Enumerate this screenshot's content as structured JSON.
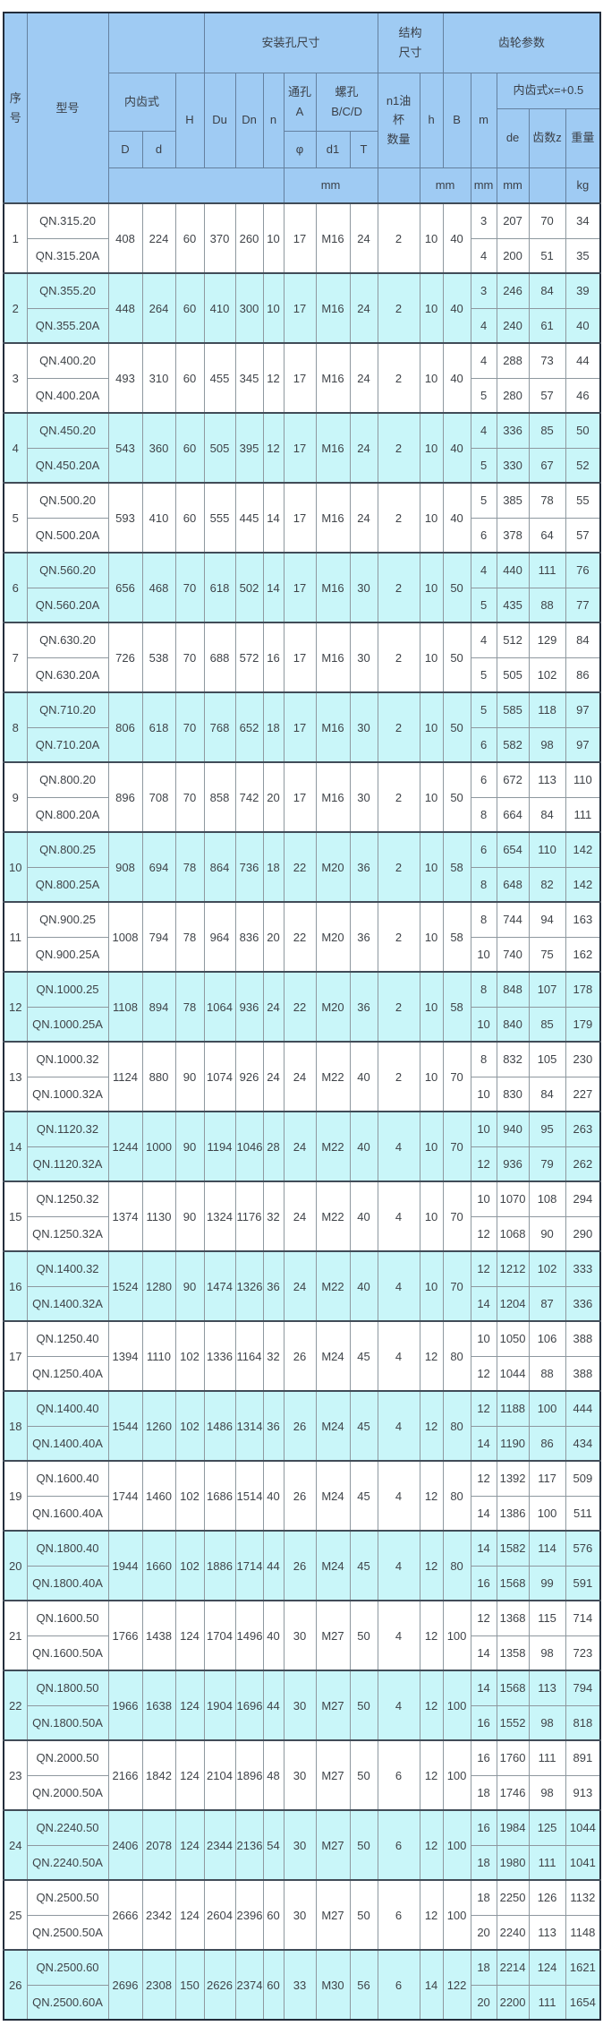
{
  "colors": {
    "header_bg": "#9fcbf3",
    "band_cyan": "#c9f6f9",
    "band_white": "#ffffff",
    "body_grid_line": "#8e989f",
    "header_grid_line": "#64809f",
    "outer_border": "#232d3b",
    "text": "#3f4348"
  },
  "table": {
    "header": {
      "serial": "序\n号",
      "model": "型号",
      "install_dims": "安装孔尺寸",
      "structure_dims": "结构\n尺寸",
      "gear_params": "齿轮参数",
      "internal_gear": "内齿式",
      "H": "H",
      "Du": "Du",
      "Dn": "Dn",
      "n": "n",
      "through_hole": "通孔\nA",
      "screw_hole": "螺孔\nB/C/D",
      "oil_cup": "n1油\n杯\n数量",
      "h": "h",
      "B": "B",
      "m": "m",
      "internal_gear_x": "内齿式x=+0.5",
      "D": "D",
      "d": "d",
      "phi": "φ",
      "d1": "d1",
      "T": "T",
      "de": "de",
      "teeth": "齿数z",
      "weight": "重量"
    },
    "units": {
      "mm": "mm",
      "kg": "kg"
    },
    "shared_columns": [
      "D",
      "d",
      "H",
      "Du",
      "Dn",
      "n",
      "phi",
      "d1",
      "T",
      "n1",
      "h",
      "B"
    ],
    "variant_columns": [
      "m",
      "de",
      "teeth-z",
      "weight"
    ],
    "rows": [
      {
        "no": "1",
        "models": [
          "QN.315.20",
          "QN.315.20A"
        ],
        "shared": [
          "408",
          "224",
          "60",
          "370",
          "260",
          "10",
          "17",
          "M16",
          "24",
          "2",
          "10",
          "40"
        ],
        "variants": [
          [
            "3",
            "207",
            "70",
            "34"
          ],
          [
            "4",
            "200",
            "51",
            "35"
          ]
        ]
      },
      {
        "no": "2",
        "models": [
          "QN.355.20",
          "QN.355.20A"
        ],
        "shared": [
          "448",
          "264",
          "60",
          "410",
          "300",
          "10",
          "17",
          "M16",
          "24",
          "2",
          "10",
          "40"
        ],
        "variants": [
          [
            "3",
            "246",
            "84",
            "39"
          ],
          [
            "4",
            "240",
            "61",
            "40"
          ]
        ]
      },
      {
        "no": "3",
        "models": [
          "QN.400.20",
          "QN.400.20A"
        ],
        "shared": [
          "493",
          "310",
          "60",
          "455",
          "345",
          "12",
          "17",
          "M16",
          "24",
          "2",
          "10",
          "40"
        ],
        "variants": [
          [
            "4",
            "288",
            "73",
            "44"
          ],
          [
            "5",
            "280",
            "57",
            "46"
          ]
        ]
      },
      {
        "no": "4",
        "models": [
          "QN.450.20",
          "QN.450.20A"
        ],
        "shared": [
          "543",
          "360",
          "60",
          "505",
          "395",
          "12",
          "17",
          "M16",
          "24",
          "2",
          "10",
          "40"
        ],
        "variants": [
          [
            "4",
            "336",
            "85",
            "50"
          ],
          [
            "5",
            "330",
            "67",
            "52"
          ]
        ]
      },
      {
        "no": "5",
        "models": [
          "QN.500.20",
          "QN.500.20A"
        ],
        "shared": [
          "593",
          "410",
          "60",
          "555",
          "445",
          "14",
          "17",
          "M16",
          "24",
          "2",
          "10",
          "40"
        ],
        "variants": [
          [
            "5",
            "385",
            "78",
            "55"
          ],
          [
            "6",
            "378",
            "64",
            "57"
          ]
        ]
      },
      {
        "no": "6",
        "models": [
          "QN.560.20",
          "QN.560.20A"
        ],
        "shared": [
          "656",
          "468",
          "70",
          "618",
          "502",
          "14",
          "17",
          "M16",
          "30",
          "2",
          "10",
          "50"
        ],
        "variants": [
          [
            "4",
            "440",
            "111",
            "76"
          ],
          [
            "5",
            "435",
            "88",
            "77"
          ]
        ]
      },
      {
        "no": "7",
        "models": [
          "QN.630.20",
          "QN.630.20A"
        ],
        "shared": [
          "726",
          "538",
          "70",
          "688",
          "572",
          "16",
          "17",
          "M16",
          "30",
          "2",
          "10",
          "50"
        ],
        "variants": [
          [
            "4",
            "512",
            "129",
            "84"
          ],
          [
            "5",
            "505",
            "102",
            "86"
          ]
        ]
      },
      {
        "no": "8",
        "models": [
          "QN.710.20",
          "QN.710.20A"
        ],
        "shared": [
          "806",
          "618",
          "70",
          "768",
          "652",
          "18",
          "17",
          "M16",
          "30",
          "2",
          "10",
          "50"
        ],
        "variants": [
          [
            "5",
            "585",
            "118",
            "97"
          ],
          [
            "6",
            "582",
            "98",
            "97"
          ]
        ]
      },
      {
        "no": "9",
        "models": [
          "QN.800.20",
          "QN.800.20A"
        ],
        "shared": [
          "896",
          "708",
          "70",
          "858",
          "742",
          "20",
          "17",
          "M16",
          "30",
          "2",
          "10",
          "50"
        ],
        "variants": [
          [
            "6",
            "672",
            "113",
            "110"
          ],
          [
            "8",
            "664",
            "84",
            "111"
          ]
        ]
      },
      {
        "no": "10",
        "models": [
          "QN.800.25",
          "QN.800.25A"
        ],
        "shared": [
          "908",
          "694",
          "78",
          "864",
          "736",
          "18",
          "22",
          "M20",
          "36",
          "2",
          "10",
          "58"
        ],
        "variants": [
          [
            "6",
            "654",
            "110",
            "142"
          ],
          [
            "8",
            "648",
            "82",
            "142"
          ]
        ]
      },
      {
        "no": "11",
        "models": [
          "QN.900.25",
          "QN.900.25A"
        ],
        "shared": [
          "1008",
          "794",
          "78",
          "964",
          "836",
          "20",
          "22",
          "M20",
          "36",
          "2",
          "10",
          "58"
        ],
        "variants": [
          [
            "8",
            "744",
            "94",
            "163"
          ],
          [
            "10",
            "740",
            "75",
            "162"
          ]
        ]
      },
      {
        "no": "12",
        "models": [
          "QN.1000.25",
          "QN.1000.25A"
        ],
        "shared": [
          "1108",
          "894",
          "78",
          "1064",
          "936",
          "24",
          "22",
          "M20",
          "36",
          "2",
          "10",
          "58"
        ],
        "variants": [
          [
            "8",
            "848",
            "107",
            "178"
          ],
          [
            "10",
            "840",
            "85",
            "179"
          ]
        ]
      },
      {
        "no": "13",
        "models": [
          "QN.1000.32",
          "QN.1000.32A"
        ],
        "shared": [
          "1124",
          "880",
          "90",
          "1074",
          "926",
          "24",
          "24",
          "M22",
          "40",
          "2",
          "10",
          "70"
        ],
        "variants": [
          [
            "8",
            "832",
            "105",
            "230"
          ],
          [
            "10",
            "830",
            "84",
            "227"
          ]
        ]
      },
      {
        "no": "14",
        "models": [
          "QN.1120.32",
          "QN.1120.32A"
        ],
        "shared": [
          "1244",
          "1000",
          "90",
          "1194",
          "1046",
          "28",
          "24",
          "M22",
          "40",
          "4",
          "10",
          "70"
        ],
        "variants": [
          [
            "10",
            "940",
            "95",
            "263"
          ],
          [
            "12",
            "936",
            "79",
            "262"
          ]
        ]
      },
      {
        "no": "15",
        "models": [
          "QN.1250.32",
          "QN.1250.32A"
        ],
        "shared": [
          "1374",
          "1130",
          "90",
          "1324",
          "1176",
          "32",
          "24",
          "M22",
          "40",
          "4",
          "10",
          "70"
        ],
        "variants": [
          [
            "10",
            "1070",
            "108",
            "294"
          ],
          [
            "12",
            "1068",
            "90",
            "290"
          ]
        ]
      },
      {
        "no": "16",
        "models": [
          "QN.1400.32",
          "QN.1400.32A"
        ],
        "shared": [
          "1524",
          "1280",
          "90",
          "1474",
          "1326",
          "36",
          "24",
          "M22",
          "40",
          "4",
          "10",
          "70"
        ],
        "variants": [
          [
            "12",
            "1212",
            "102",
            "333"
          ],
          [
            "14",
            "1204",
            "87",
            "336"
          ]
        ]
      },
      {
        "no": "17",
        "models": [
          "QN.1250.40",
          "QN.1250.40A"
        ],
        "shared": [
          "1394",
          "1110",
          "102",
          "1336",
          "1164",
          "32",
          "26",
          "M24",
          "45",
          "4",
          "12",
          "80"
        ],
        "variants": [
          [
            "10",
            "1050",
            "106",
            "388"
          ],
          [
            "12",
            "1044",
            "88",
            "388"
          ]
        ]
      },
      {
        "no": "18",
        "models": [
          "QN.1400.40",
          "QN.1400.40A"
        ],
        "shared": [
          "1544",
          "1260",
          "102",
          "1486",
          "1314",
          "36",
          "26",
          "M24",
          "45",
          "4",
          "12",
          "80"
        ],
        "variants": [
          [
            "12",
            "1188",
            "100",
            "444"
          ],
          [
            "14",
            "1190",
            "86",
            "434"
          ]
        ]
      },
      {
        "no": "19",
        "models": [
          "QN.1600.40",
          "QN.1600.40A"
        ],
        "shared": [
          "1744",
          "1460",
          "102",
          "1686",
          "1514",
          "40",
          "26",
          "M24",
          "45",
          "4",
          "12",
          "80"
        ],
        "variants": [
          [
            "12",
            "1392",
            "117",
            "509"
          ],
          [
            "14",
            "1386",
            "100",
            "511"
          ]
        ]
      },
      {
        "no": "20",
        "models": [
          "QN.1800.40",
          "QN.1800.40A"
        ],
        "shared": [
          "1944",
          "1660",
          "102",
          "1886",
          "1714",
          "44",
          "26",
          "M24",
          "45",
          "4",
          "12",
          "80"
        ],
        "variants": [
          [
            "14",
            "1582",
            "114",
            "576"
          ],
          [
            "16",
            "1568",
            "99",
            "591"
          ]
        ]
      },
      {
        "no": "21",
        "models": [
          "QN.1600.50",
          "QN.1600.50A"
        ],
        "shared": [
          "1766",
          "1438",
          "124",
          "1704",
          "1496",
          "40",
          "30",
          "M27",
          "50",
          "4",
          "12",
          "100"
        ],
        "variants": [
          [
            "12",
            "1368",
            "115",
            "714"
          ],
          [
            "14",
            "1358",
            "98",
            "723"
          ]
        ]
      },
      {
        "no": "22",
        "models": [
          "QN.1800.50",
          "QN.1800.50A"
        ],
        "shared": [
          "1966",
          "1638",
          "124",
          "1904",
          "1696",
          "44",
          "30",
          "M27",
          "50",
          "4",
          "12",
          "100"
        ],
        "variants": [
          [
            "14",
            "1568",
            "113",
            "794"
          ],
          [
            "16",
            "1552",
            "98",
            "818"
          ]
        ]
      },
      {
        "no": "23",
        "models": [
          "QN.2000.50",
          "QN.2000.50A"
        ],
        "shared": [
          "2166",
          "1842",
          "124",
          "2104",
          "1896",
          "48",
          "30",
          "M27",
          "50",
          "6",
          "12",
          "100"
        ],
        "variants": [
          [
            "16",
            "1760",
            "111",
            "891"
          ],
          [
            "18",
            "1746",
            "98",
            "913"
          ]
        ]
      },
      {
        "no": "24",
        "models": [
          "QN.2240.50",
          "QN.2240.50A"
        ],
        "shared": [
          "2406",
          "2078",
          "124",
          "2344",
          "2136",
          "54",
          "30",
          "M27",
          "50",
          "6",
          "12",
          "100"
        ],
        "variants": [
          [
            "16",
            "1984",
            "125",
            "1044"
          ],
          [
            "18",
            "1980",
            "111",
            "1041"
          ]
        ]
      },
      {
        "no": "25",
        "models": [
          "QN.2500.50",
          "QN.2500.50A"
        ],
        "shared": [
          "2666",
          "2342",
          "124",
          "2604",
          "2396",
          "60",
          "30",
          "M27",
          "50",
          "6",
          "12",
          "100"
        ],
        "variants": [
          [
            "18",
            "2250",
            "126",
            "1132"
          ],
          [
            "20",
            "2240",
            "113",
            "1148"
          ]
        ]
      },
      {
        "no": "26",
        "models": [
          "QN.2500.60",
          "QN.2500.60A"
        ],
        "shared": [
          "2696",
          "2308",
          "150",
          "2626",
          "2374",
          "60",
          "33",
          "M30",
          "56",
          "6",
          "14",
          "122"
        ],
        "variants": [
          [
            "18",
            "2214",
            "124",
            "1621"
          ],
          [
            "20",
            "2200",
            "111",
            "1654"
          ]
        ]
      }
    ]
  }
}
